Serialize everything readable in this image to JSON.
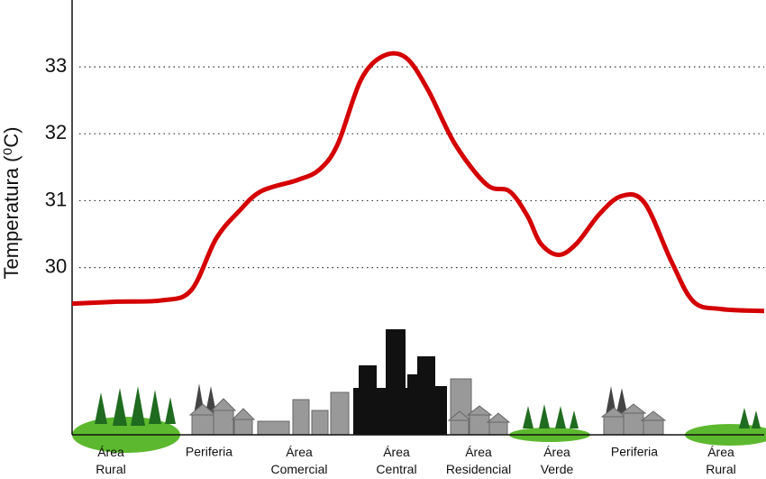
{
  "chart_data": {
    "type": "line",
    "y_label": "Temperatura (⁰C)",
    "categories": [
      "Área Rural",
      "Periferia",
      "Área Comercial",
      "Área Central",
      "Área Residencial",
      "Área Verde",
      "Periferia",
      "Área Rural"
    ],
    "x": [
      0,
      6.5,
      13,
      17.2,
      20.8,
      24.1,
      27.3,
      32.6,
      35.8,
      38.4,
      41.7,
      44.9,
      48.2,
      51.4,
      55.3,
      59.9,
      63.2,
      65.8,
      67.7,
      70.3,
      72.9,
      76.2,
      79.4,
      82.7,
      86.6,
      89.8,
      93.8,
      100
    ],
    "series": [
      {
        "color": "#d40000",
        "values": [
          29.46,
          29.49,
          29.51,
          29.66,
          30.43,
          30.84,
          31.14,
          31.31,
          31.47,
          31.85,
          32.8,
          33.16,
          33.14,
          32.66,
          31.85,
          31.24,
          31.14,
          30.77,
          30.36,
          30.19,
          30.36,
          30.8,
          31.07,
          30.97,
          30.09,
          29.49,
          29.38,
          29.35
        ]
      }
    ],
    "xlim": [
      0,
      100
    ],
    "ylim": [
      27.5,
      34
    ],
    "yticks": [
      30,
      31,
      32,
      33
    ],
    "grid": true
  }
}
